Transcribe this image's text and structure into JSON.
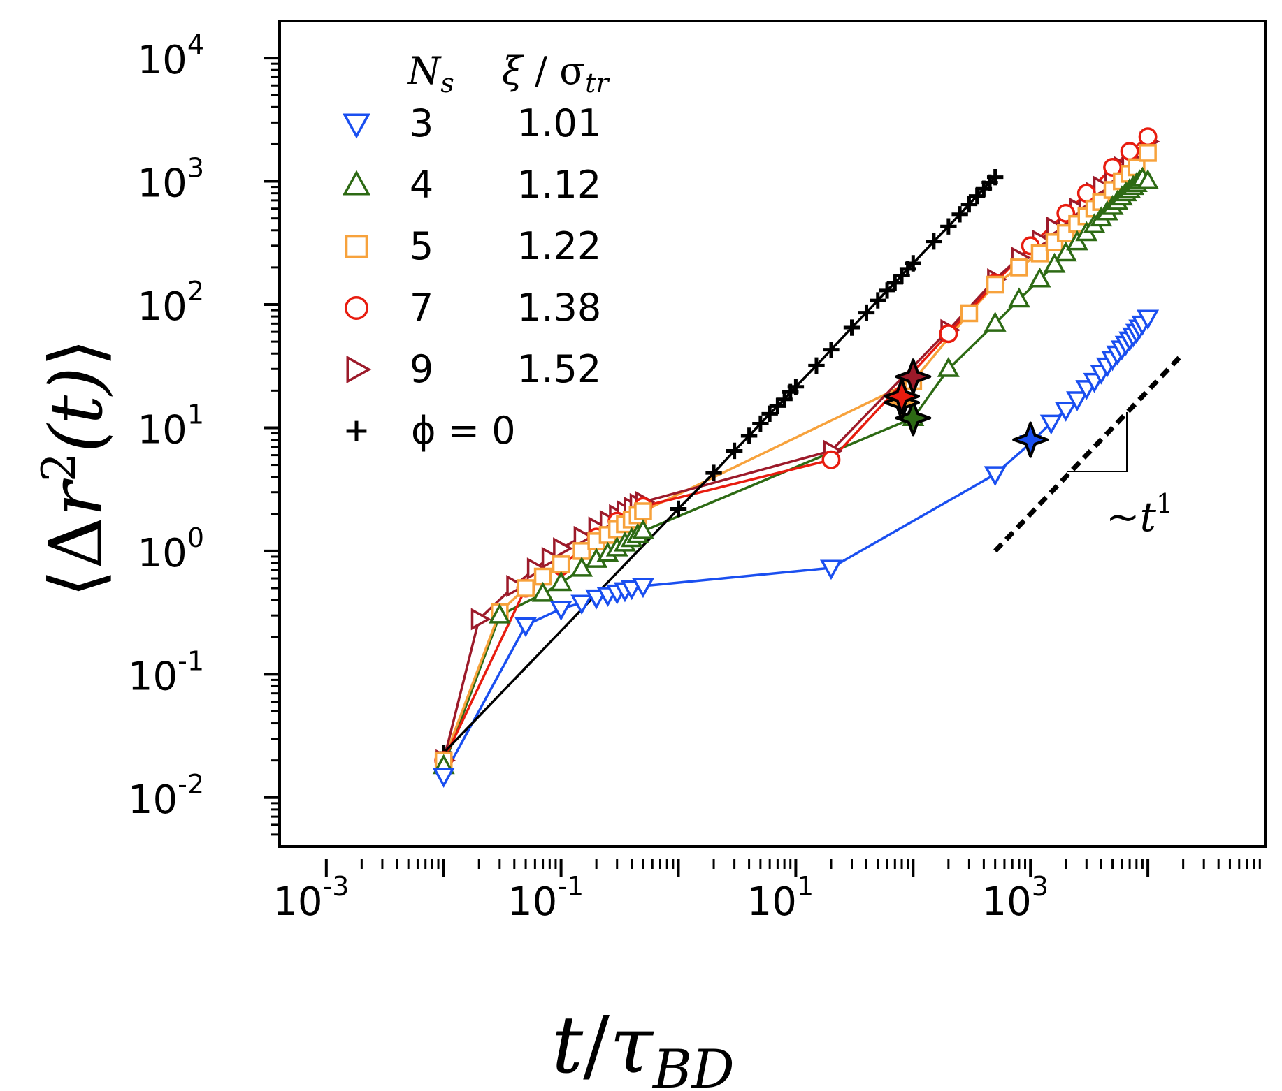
{
  "chart_data": {
    "type": "scatter",
    "xscale": "log",
    "yscale": "log",
    "xlim": [
      0.0004,
      100000
    ],
    "ylim": [
      0.004,
      20000
    ],
    "x_tick_exponents": [
      -3,
      -1,
      1,
      3
    ],
    "y_tick_exponents": [
      -2,
      -1,
      0,
      1,
      2,
      3,
      4
    ],
    "xlabel": {
      "main": "t",
      "slash": "/",
      "tau": "τ",
      "sub": "BD"
    },
    "ylabel": {
      "left": "⟨",
      "delta": "Δ",
      "r": "r",
      "sup": "2",
      "t": "(t)",
      "right": "⟩"
    },
    "tick_base": "10",
    "legend": {
      "position": "top-left",
      "header_n": "N",
      "header_n_sub": "s",
      "header_xi": "ξ",
      "header_slash": " / σ",
      "header_sigma_sub": "tr",
      "phi_label": "ϕ = 0"
    },
    "slope_annotation": {
      "prefix": "~",
      "t": "t",
      "exponent": "1"
    },
    "slope_line": {
      "x": [
        500,
        20000
      ],
      "y": [
        1.0,
        40
      ]
    },
    "series": [
      {
        "name": "3",
        "xi": "1.01",
        "color": "#1a4ff0",
        "marker": "triangle-down",
        "x": [
          0.01,
          0.05,
          0.1,
          0.15,
          0.2,
          0.25,
          0.3,
          0.35,
          0.4,
          0.5,
          20,
          500,
          1000,
          1500,
          2000,
          2500,
          3000,
          3500,
          4000,
          4500,
          5000,
          5500,
          6000,
          6500,
          7000,
          7500,
          8000,
          8500,
          9000,
          10000
        ],
        "y": [
          0.015,
          0.25,
          0.34,
          0.38,
          0.42,
          0.44,
          0.46,
          0.48,
          0.5,
          0.52,
          0.73,
          4.2,
          7.5,
          11,
          14,
          17,
          21,
          24,
          28,
          32,
          36,
          40,
          44,
          48,
          52,
          56,
          60,
          65,
          70,
          78
        ],
        "star": {
          "x": 1000,
          "y": 8.0
        }
      },
      {
        "name": "4",
        "xi": "1.12",
        "color": "#2d6a14",
        "marker": "triangle-up",
        "x": [
          0.01,
          0.03,
          0.07,
          0.1,
          0.15,
          0.2,
          0.25,
          0.3,
          0.35,
          0.4,
          0.45,
          0.5,
          100,
          200,
          500,
          800,
          1200,
          1600,
          2000,
          2500,
          3000,
          3500,
          4000,
          4500,
          5000,
          5500,
          6000,
          6500,
          7000,
          7500,
          8000,
          8500,
          9000,
          10000
        ],
        "y": [
          0.018,
          0.3,
          0.45,
          0.55,
          0.72,
          0.85,
          0.95,
          1.05,
          1.15,
          1.25,
          1.35,
          1.45,
          12,
          30,
          70,
          110,
          160,
          210,
          260,
          320,
          380,
          440,
          500,
          560,
          620,
          680,
          740,
          800,
          850,
          900,
          950,
          1000,
          1050,
          1000
        ],
        "star": {
          "x": 100,
          "y": 12
        }
      },
      {
        "name": "5",
        "xi": "1.22",
        "color": "#f7a23c",
        "marker": "square",
        "x": [
          0.01,
          0.03,
          0.05,
          0.07,
          0.1,
          0.15,
          0.2,
          0.25,
          0.3,
          0.35,
          0.4,
          0.45,
          0.5,
          100,
          300,
          500,
          800,
          1200,
          1600,
          2000,
          2500,
          3000,
          3500,
          4000,
          5000,
          6000,
          7000,
          8000,
          10000
        ],
        "y": [
          0.02,
          0.32,
          0.5,
          0.62,
          0.78,
          1.0,
          1.2,
          1.35,
          1.5,
          1.65,
          1.8,
          1.95,
          2.1,
          24,
          85,
          145,
          200,
          260,
          320,
          380,
          450,
          520,
          600,
          680,
          850,
          1000,
          1150,
          1300,
          1700
        ],
        "star": {
          "x": 80,
          "y": 16
        }
      },
      {
        "name": "7",
        "xi": "1.38",
        "color": "#e81c0f",
        "marker": "circle",
        "x": [
          0.01,
          0.05,
          0.1,
          0.2,
          0.3,
          0.5,
          20,
          200,
          500,
          1000,
          2000,
          3000,
          5000,
          7000,
          10000
        ],
        "y": [
          0.02,
          0.5,
          0.75,
          1.3,
          1.75,
          2.3,
          5.5,
          58,
          150,
          300,
          550,
          800,
          1300,
          1750,
          2300
        ],
        "star": {
          "x": 80,
          "y": 18
        }
      },
      {
        "name": "9",
        "xi": "1.52",
        "color": "#9c1a2a",
        "marker": "triangle-right",
        "x": [
          0.01,
          0.02,
          0.04,
          0.06,
          0.08,
          0.1,
          0.15,
          0.2,
          0.25,
          0.3,
          0.35,
          0.4,
          0.45,
          0.5,
          20,
          200,
          500,
          800,
          1200,
          1600,
          2000,
          2500,
          3000,
          3500,
          4000,
          5000,
          6000,
          7000,
          8000,
          10000
        ],
        "y": [
          0.02,
          0.28,
          0.52,
          0.72,
          0.88,
          1.05,
          1.3,
          1.55,
          1.75,
          1.95,
          2.1,
          2.25,
          2.4,
          2.5,
          6.5,
          62,
          160,
          240,
          330,
          420,
          500,
          600,
          700,
          800,
          900,
          1100,
          1300,
          1500,
          1700,
          2100
        ],
        "star": {
          "x": 100,
          "y": 26
        }
      },
      {
        "name": "ϕ = 0",
        "color": "#000000",
        "marker": "plus",
        "x": [
          0.01,
          1,
          2,
          3,
          4,
          5,
          6,
          7,
          8,
          9,
          10,
          15,
          20,
          30,
          40,
          50,
          60,
          70,
          80,
          90,
          100,
          150,
          200,
          250,
          300,
          350,
          400,
          450,
          500
        ],
        "y": [
          0.023,
          2.2,
          4.3,
          6.5,
          8.6,
          10.8,
          13,
          15,
          17,
          19.5,
          21.5,
          32,
          43,
          65,
          86,
          108,
          130,
          150,
          172,
          195,
          216,
          325,
          430,
          540,
          650,
          760,
          870,
          975,
          1080
        ]
      }
    ]
  }
}
